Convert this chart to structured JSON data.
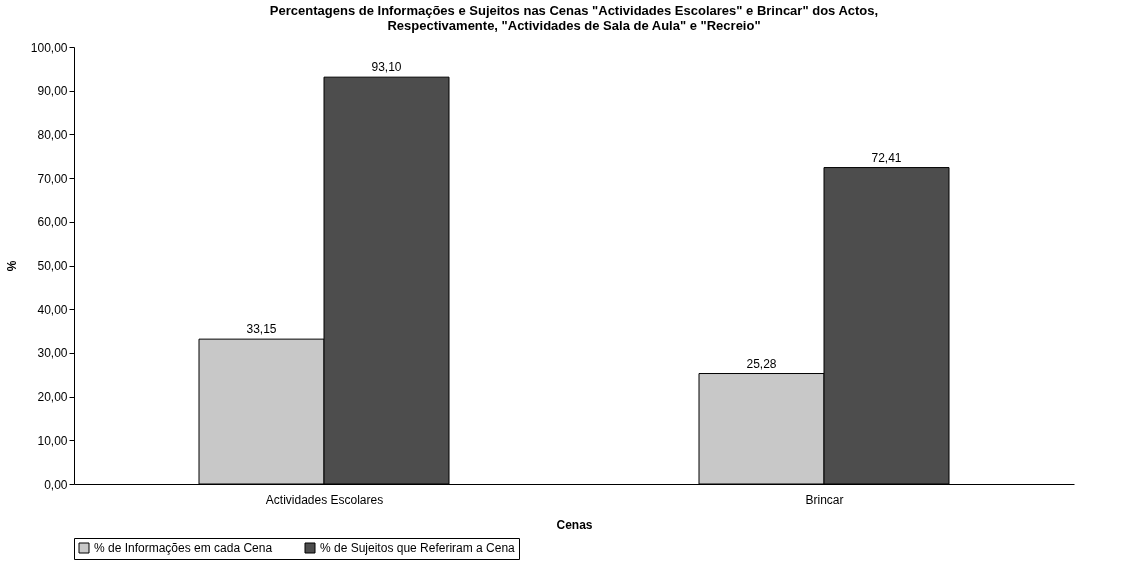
{
  "chart_data": {
    "type": "bar",
    "title": "Percentagens de Informações e Sujeitos nas Cenas \"Actividades Escolares\" e Brincar\" dos Actos, Respectivamente, \"Actividades de Sala de Aula\" e \"Recreio\"",
    "xlabel": "Cenas",
    "ylabel": "%",
    "categories": [
      "Actividades Escolares",
      "Brincar"
    ],
    "series": [
      {
        "name": "% de Informações em cada Cena",
        "color": "#c8c8c8",
        "values": [
          33.15,
          25.28
        ],
        "value_labels": [
          "33,15",
          "25,28"
        ]
      },
      {
        "name": "% de Sujeitos que Referiram a Cena",
        "color": "#4d4d4d",
        "values": [
          93.1,
          72.41
        ],
        "value_labels": [
          "93,10",
          "72,41"
        ]
      }
    ],
    "ylim": [
      0,
      100
    ],
    "yticks": [
      {
        "value": 0,
        "label": "0,00"
      },
      {
        "value": 10,
        "label": "10,00"
      },
      {
        "value": 20,
        "label": "20,00"
      },
      {
        "value": 30,
        "label": "30,00"
      },
      {
        "value": 40,
        "label": "40,00"
      },
      {
        "value": 50,
        "label": "50,00"
      },
      {
        "value": 60,
        "label": "60,00"
      },
      {
        "value": 70,
        "label": "70,00"
      },
      {
        "value": 80,
        "label": "80,00"
      },
      {
        "value": 90,
        "label": "90,00"
      },
      {
        "value": 100,
        "label": "100,00"
      }
    ],
    "legend": "bottom"
  }
}
